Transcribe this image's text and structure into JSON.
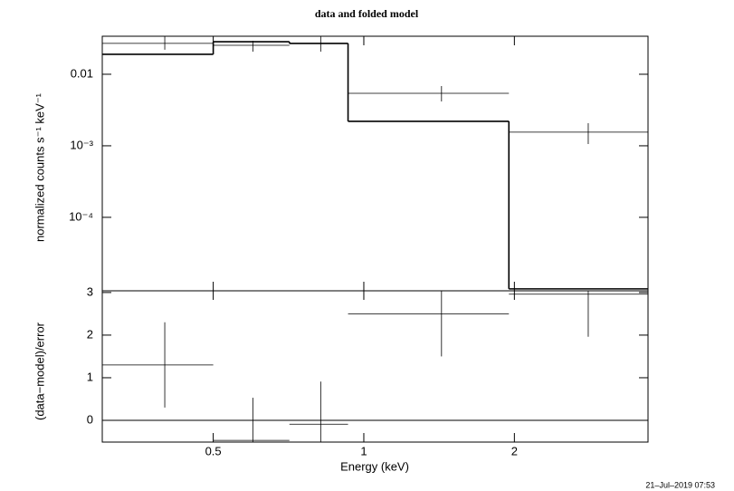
{
  "timestamp": "21–Jul–2019 07:53",
  "chart_data": [
    {
      "type": "step",
      "title": "data and folded model",
      "ylabel": "normalized counts s⁻¹ keV⁻¹",
      "log_x": true,
      "log_y": true,
      "color": "#000000",
      "xlim": [
        0.3,
        3.7
      ],
      "xticks": [
        0.5,
        1,
        2
      ],
      "ylim": [
        9.4e-06,
        0.034
      ],
      "yticks": [
        0.01,
        {
          "value": 0.001,
          "label": "10⁻³"
        },
        {
          "value": 0.0001,
          "label": "10⁻⁴"
        }
      ],
      "bins": [
        0.3,
        0.5,
        0.71,
        0.93,
        1.95,
        3.7
      ],
      "x": [
        0.4,
        0.6,
        0.82,
        1.43,
        2.81
      ],
      "values": [
        0.027,
        0.0254,
        0.027,
        0.00542,
        0.00155
      ],
      "y_low": [
        0.022,
        0.0207,
        0.0207,
        0.00417,
        0.00106
      ],
      "y_high": [
        0.034,
        0.0294,
        0.034,
        0.00684,
        0.00207
      ],
      "model": [
        0.019,
        0.0285,
        0.027,
        0.0022,
        1e-05
      ]
    },
    {
      "type": "errorbar",
      "xlabel": "Energy (keV)",
      "ylabel": "(data−model)/error",
      "log_x": true,
      "color": "#000000",
      "xlim": [
        0.3,
        3.7
      ],
      "xticks": [
        0.5,
        1,
        2
      ],
      "ylim": [
        -0.51,
        3.04
      ],
      "yticks": [
        0,
        1,
        2,
        3
      ],
      "bins": [
        0.3,
        0.5,
        0.71,
        0.93,
        1.95,
        3.7
      ],
      "x": [
        0.4,
        0.6,
        0.82,
        1.43,
        2.81
      ],
      "values": [
        1.3,
        -0.47,
        -0.09,
        2.5,
        2.96
      ],
      "errors": [
        1,
        1,
        1,
        1,
        1
      ],
      "hline": 0
    }
  ]
}
